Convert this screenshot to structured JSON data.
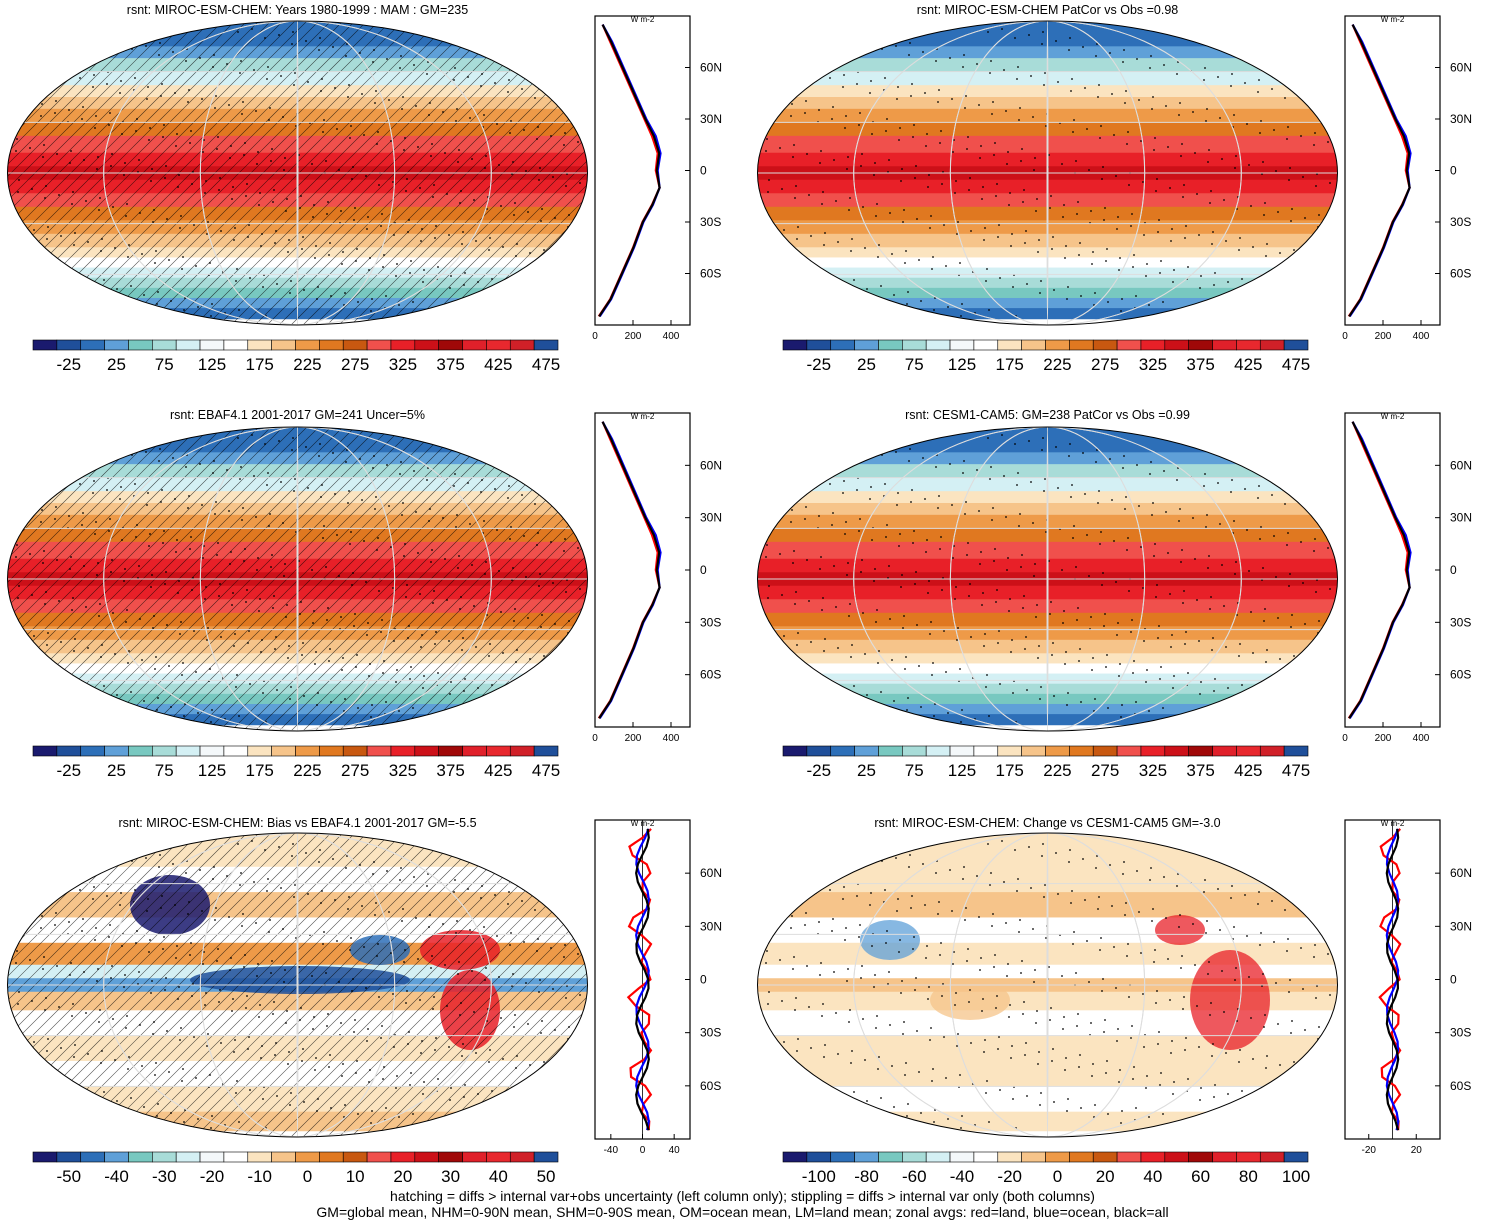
{
  "panels": [
    {
      "id": "p1",
      "title": "rsnt: MIROC-ESM-CHEM: Years 1980-1999 : MAM : GM=235",
      "type": "absolute",
      "hatching": true,
      "colorbar_labels": [
        "-25",
        "25",
        "75",
        "125",
        "175",
        "225",
        "275",
        "325",
        "375",
        "425",
        "475"
      ],
      "zonal": {
        "unit": "W m-2",
        "xticks": [
          "0",
          "200",
          "400"
        ],
        "xlim": [
          0,
          500
        ],
        "yticks": [
          "60N",
          "30N",
          "0",
          "30S",
          "60S"
        ]
      }
    },
    {
      "id": "p2",
      "title": "rsnt: MIROC-ESM-CHEM PatCor vs Obs =0.98",
      "type": "absolute",
      "hatching": false,
      "colorbar_labels": [
        "-25",
        "25",
        "75",
        "125",
        "175",
        "225",
        "275",
        "325",
        "375",
        "425",
        "475"
      ],
      "zonal": {
        "unit": "W m-2",
        "xticks": [
          "0",
          "200",
          "400"
        ],
        "xlim": [
          0,
          500
        ],
        "yticks": [
          "60N",
          "30N",
          "0",
          "30S",
          "60S"
        ]
      }
    },
    {
      "id": "p3",
      "title": "rsnt: EBAF4.1 2001-2017 GM=241 Uncer=5%",
      "type": "absolute",
      "hatching": true,
      "colorbar_labels": [
        "-25",
        "25",
        "75",
        "125",
        "175",
        "225",
        "275",
        "325",
        "375",
        "425",
        "475"
      ],
      "zonal": {
        "unit": "W m-2",
        "xticks": [
          "0",
          "200",
          "400"
        ],
        "xlim": [
          0,
          500
        ],
        "yticks": [
          "60N",
          "30N",
          "0",
          "30S",
          "60S"
        ]
      }
    },
    {
      "id": "p4",
      "title": "rsnt: CESM1-CAM5: GM=238 PatCor vs Obs =0.99",
      "type": "absolute",
      "hatching": false,
      "colorbar_labels": [
        "-25",
        "25",
        "75",
        "125",
        "175",
        "225",
        "275",
        "325",
        "375",
        "425",
        "475"
      ],
      "zonal": {
        "unit": "W m-2",
        "xticks": [
          "0",
          "200",
          "400"
        ],
        "xlim": [
          0,
          500
        ],
        "yticks": [
          "60N",
          "30N",
          "0",
          "30S",
          "60S"
        ]
      }
    },
    {
      "id": "p5",
      "title": "rsnt: MIROC-ESM-CHEM: Bias vs EBAF4.1 2001-2017 GM=-5.5",
      "type": "bias",
      "hatching": true,
      "colorbar_labels": [
        "-50",
        "-40",
        "-30",
        "-20",
        "-10",
        "0",
        "10",
        "20",
        "30",
        "40",
        "50"
      ],
      "zonal": {
        "unit": "W m-2",
        "xticks": [
          "-40",
          "0",
          "40"
        ],
        "xlim": [
          -60,
          60
        ],
        "yticks": [
          "60N",
          "30N",
          "0",
          "30S",
          "60S"
        ]
      }
    },
    {
      "id": "p6",
      "title": "rsnt: MIROC-ESM-CHEM: Change vs CESM1-CAM5 GM=-3.0",
      "type": "change",
      "hatching": false,
      "colorbar_labels": [
        "-100",
        "-80",
        "-60",
        "-40",
        "-20",
        "0",
        "20",
        "40",
        "60",
        "80",
        "100"
      ],
      "zonal": {
        "unit": "W m-2",
        "xticks": [
          "-20",
          "20"
        ],
        "xlim": [
          -40,
          40
        ],
        "yticks": [
          "60N",
          "30N",
          "0",
          "30S",
          "60S"
        ]
      }
    }
  ],
  "colors": {
    "colorbar_palette": [
      "#1a1a6e",
      "#1f4f9a",
      "#2d6fb8",
      "#5fa0d8",
      "#78c8c0",
      "#a8dcd8",
      "#d4f0f4",
      "#f4f8fa",
      "#ffffff",
      "#fbe4c0",
      "#f6c48a",
      "#ee9a48",
      "#e07820",
      "#c85810",
      "#f0504c",
      "#e82028",
      "#cc1018",
      "#a00808",
      "#e0202a",
      "#e8282e",
      "#d02028",
      "#1f4f9a"
    ],
    "land": "#ff0000",
    "ocean": "#0000ff",
    "all": "#000000"
  },
  "chart_data": [
    {
      "type": "line",
      "title": "",
      "ylabel": "",
      "xlabel": "W m-2",
      "ylim": [
        -90,
        90
      ],
      "xlim": [
        0,
        500
      ],
      "series": [
        {
          "name": "land",
          "x": [
            40,
            80,
            140,
            200,
            260,
            300,
            330,
            320,
            340,
            300,
            250,
            200,
            140,
            80,
            20
          ],
          "y": [
            85,
            75,
            60,
            45,
            30,
            20,
            10,
            0,
            -10,
            -20,
            -30,
            -45,
            -60,
            -75,
            -85
          ]
        },
        {
          "name": "ocean",
          "x": [
            40,
            90,
            150,
            210,
            270,
            320,
            345,
            330,
            340,
            305,
            255,
            205,
            145,
            85,
            25
          ],
          "y": [
            85,
            75,
            60,
            45,
            30,
            20,
            10,
            0,
            -10,
            -20,
            -30,
            -45,
            -60,
            -75,
            -85
          ]
        },
        {
          "name": "all",
          "x": [
            40,
            85,
            145,
            205,
            265,
            310,
            338,
            325,
            340,
            302,
            252,
            202,
            142,
            82,
            22
          ],
          "y": [
            85,
            75,
            60,
            45,
            30,
            20,
            10,
            0,
            -10,
            -20,
            -30,
            -45,
            -60,
            -75,
            -85
          ]
        }
      ]
    }
  ],
  "footer": {
    "line1": "hatching = diffs > internal var+obs uncertainty (left column only); stippling = diffs > internal var only (both columns)",
    "line2": "GM=global mean, NHM=0-90N mean, SHM=0-90S mean, OM=ocean mean, LM=land mean; zonal avgs: red=land, blue=ocean, black=all"
  }
}
